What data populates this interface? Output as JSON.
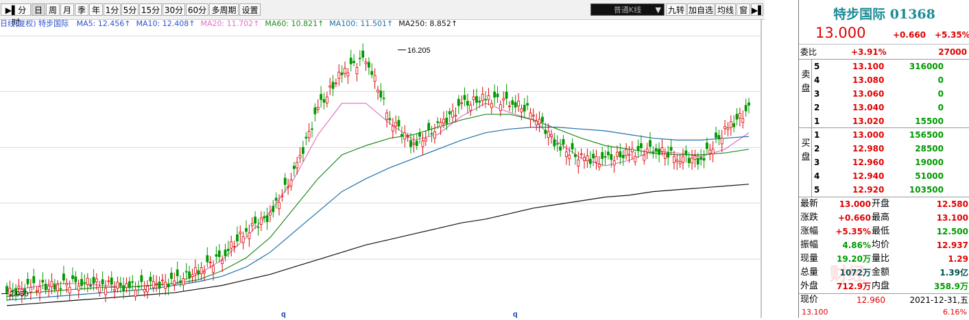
{
  "toolbar": {
    "items": [
      "分时",
      "日",
      "周",
      "月",
      "季",
      "年",
      "1分",
      "5分",
      "15分",
      "30分",
      "60分",
      "多周期",
      "设置"
    ],
    "active_index": 1,
    "combo_value": "普通K线",
    "right_items": [
      "九转",
      "加自选",
      "均线",
      "窗"
    ]
  },
  "ma_legend": {
    "prefix": "日线(复权) 特步国际",
    "items": [
      {
        "label": "MA5: 12.456↑",
        "color": "#2a4fd0"
      },
      {
        "label": "MA10: 12.408↑",
        "color": "#2a4fd0"
      },
      {
        "label": "MA20: 11.702↑",
        "color": "#e070c0"
      },
      {
        "label": "MA60: 10.821↑",
        "color": "#1e8a1e"
      },
      {
        "label": "MA100: 11.501↑",
        "color": "#1c6fa8"
      },
      {
        "label": "MA250: 8.852↑",
        "color": "#111111"
      }
    ]
  },
  "chart_data": {
    "type": "candlestick",
    "y_axis_ticks": [
      "16.965",
      "13.948",
      "10.894",
      "7.877",
      "4.823"
    ],
    "ylim": [
      2.3,
      17.5
    ],
    "x_axis_ticks": [
      "q",
      "q"
    ],
    "annotations": [
      {
        "label": "16.205",
        "kind": "high"
      },
      {
        "label": "2.950",
        "kind": "low"
      }
    ],
    "series": [
      {
        "name": "MA20",
        "color": "#e070c0",
        "values": [
          3.1,
          3.3,
          3.5,
          3.5,
          3.4,
          3.3,
          3.4,
          3.5,
          4.0,
          4.8,
          6.0,
          7.4,
          9.2,
          11.6,
          13.3,
          13.3,
          12.2,
          11.3,
          11.6,
          12.6,
          13.3,
          12.8,
          12.4,
          11.2,
          10.3,
          9.9,
          10.2,
          10.7,
          10.6,
          10.4,
          10.8,
          11.7
        ]
      },
      {
        "name": "MA60",
        "color": "#1e8a1e",
        "values": [
          2.8,
          3.0,
          3.1,
          3.2,
          3.3,
          3.3,
          3.4,
          3.5,
          3.7,
          4.2,
          4.9,
          6.0,
          7.6,
          9.2,
          10.5,
          11.0,
          11.4,
          11.6,
          12.0,
          12.4,
          12.7,
          12.7,
          12.4,
          11.9,
          11.4,
          11.0,
          10.8,
          10.6,
          10.5,
          10.5,
          10.6,
          10.8
        ]
      },
      {
        "name": "MA100",
        "color": "#1c6fa8",
        "values": [
          2.6,
          2.7,
          2.8,
          2.9,
          3.0,
          3.1,
          3.2,
          3.4,
          3.6,
          3.9,
          4.4,
          5.2,
          6.3,
          7.4,
          8.5,
          9.2,
          9.8,
          10.3,
          10.8,
          11.3,
          11.7,
          11.9,
          12.0,
          12.0,
          11.9,
          11.8,
          11.6,
          11.4,
          11.3,
          11.3,
          11.4,
          11.5
        ]
      },
      {
        "name": "MA250",
        "color": "#111111",
        "values": [
          2.3,
          2.4,
          2.5,
          2.6,
          2.7,
          2.8,
          2.9,
          3.0,
          3.2,
          3.4,
          3.7,
          4.0,
          4.4,
          4.8,
          5.2,
          5.6,
          5.9,
          6.2,
          6.5,
          6.8,
          7.0,
          7.3,
          7.6,
          7.8,
          8.0,
          8.2,
          8.3,
          8.5,
          8.6,
          8.7,
          8.8,
          8.9
        ]
      }
    ],
    "candles": {
      "close": [
        3.0,
        3.3,
        3.4,
        3.6,
        3.5,
        3.3,
        3.4,
        3.6,
        4.2,
        5.0,
        6.4,
        7.2,
        9.5,
        13.0,
        15.0,
        15.8,
        12.5,
        11.0,
        12.0,
        13.2,
        13.6,
        13.4,
        12.8,
        11.0,
        10.3,
        10.2,
        10.6,
        10.8,
        10.4,
        10.2,
        11.8,
        13.0
      ],
      "open": [
        2.95,
        3.1,
        3.3,
        3.5,
        3.6,
        3.4,
        3.3,
        3.5,
        3.9,
        4.6,
        5.9,
        6.8,
        8.8,
        12.2,
        14.2,
        15.2,
        13.6,
        11.8,
        11.5,
        12.6,
        13.2,
        13.8,
        13.0,
        11.8,
        10.8,
        10.0,
        10.4,
        10.6,
        10.6,
        10.3,
        11.0,
        12.58
      ]
    }
  },
  "quote_panel": {
    "title": "特步国际 01368",
    "price": "13.000",
    "change": "+0.660",
    "percent": "+5.35%",
    "weibi": {
      "label": "委比",
      "ratio": "+3.91%",
      "diff": "27000"
    },
    "sell_label": "卖盘",
    "buy_label": "买盘",
    "asks": [
      {
        "level": "5",
        "price": "13.100",
        "vol": "316000"
      },
      {
        "level": "4",
        "price": "13.080",
        "vol": "0"
      },
      {
        "level": "3",
        "price": "13.060",
        "vol": "0"
      },
      {
        "level": "2",
        "price": "13.040",
        "vol": "0"
      },
      {
        "level": "1",
        "price": "13.020",
        "vol": "15500"
      }
    ],
    "bids": [
      {
        "level": "1",
        "price": "13.000",
        "vol": "156500"
      },
      {
        "level": "2",
        "price": "12.980",
        "vol": "28500"
      },
      {
        "level": "3",
        "price": "12.960",
        "vol": "19000"
      },
      {
        "level": "4",
        "price": "12.940",
        "vol": "51000"
      },
      {
        "level": "5",
        "price": "12.920",
        "vol": "103500"
      }
    ],
    "stats": [
      {
        "l1": "最新",
        "v1": "13.000",
        "l2": "开盘",
        "v2": "12.580",
        "c1": "red",
        "c2": "red"
      },
      {
        "l1": "涨跌",
        "v1": "+0.660",
        "l2": "最高",
        "v2": "13.100",
        "c1": "red",
        "c2": "red"
      },
      {
        "l1": "涨幅",
        "v1": "+5.35%",
        "l2": "最低",
        "v2": "12.500",
        "c1": "red",
        "c2": "green"
      },
      {
        "l1": "振幅",
        "v1": "4.86%",
        "l2": "均价",
        "v2": "12.937",
        "c1": "green",
        "c2": "red"
      },
      {
        "l1": "现量",
        "v1": "19.20万",
        "l2": "量比",
        "v2": "1.29",
        "c1": "green",
        "c2": "red"
      },
      {
        "l1": "总量",
        "v1": "1072万",
        "l2": "金额",
        "v2": "1.39亿",
        "c1": "dark",
        "c2": "dark"
      },
      {
        "l1": "外盘",
        "v1": "712.9万",
        "l2": "内盘",
        "v2": "358.9万",
        "c1": "red",
        "c2": "green"
      }
    ],
    "bottom": {
      "label": "现价",
      "price": "12.960",
      "date": "2021-12-31,五"
    },
    "footer": {
      "left": "13.100",
      "right": "6.16%"
    }
  },
  "watermark": "财经"
}
